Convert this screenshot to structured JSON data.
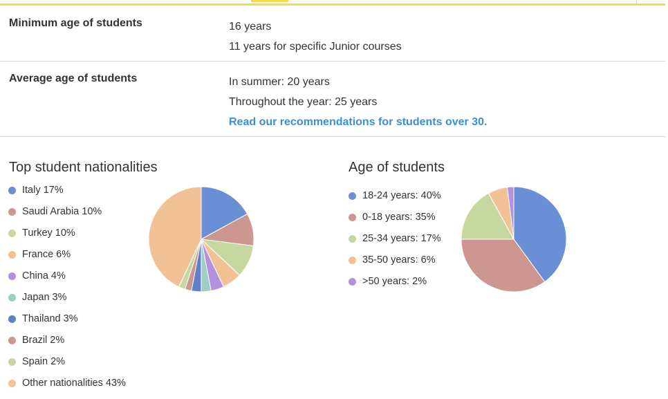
{
  "rows": {
    "min_age": {
      "label": "Minimum age of students",
      "lines": [
        "16 years",
        "11 years for specific Junior courses"
      ]
    },
    "avg_age": {
      "label": "Average age of students",
      "lines": [
        "In summer: 20 years",
        "Throughout the year: 25 years"
      ],
      "link": "Read our recommendations for students over 30."
    }
  },
  "nationalities": {
    "title": "Top student nationalities",
    "items": [
      {
        "label": "Italy 17%",
        "color": "#6a8fd4"
      },
      {
        "label": "Saudi Arabia 10%",
        "color": "#cd9791"
      },
      {
        "label": "Turkey 10%",
        "color": "#c6d79f"
      },
      {
        "label": "France 6%",
        "color": "#f1c296"
      },
      {
        "label": "China 4%",
        "color": "#b491dd"
      },
      {
        "label": "Japan 3%",
        "color": "#9dcdc5"
      },
      {
        "label": "Thailand 3%",
        "color": "#5f7fc8"
      },
      {
        "label": "Brazil 2%",
        "color": "#cd9791"
      },
      {
        "label": "Spain 2%",
        "color": "#c6d79f"
      },
      {
        "label": "Other nationalities 43%",
        "color": "#f1c296"
      }
    ]
  },
  "ages": {
    "title": "Age of students",
    "items": [
      {
        "label": "18-24 years: 40%",
        "color": "#6a8fd4"
      },
      {
        "label": "0-18 years: 35%",
        "color": "#cd9791"
      },
      {
        "label": "25-34 years: 17%",
        "color": "#c6d79f"
      },
      {
        "label": "35-50 years: 6%",
        "color": "#f1c296"
      },
      {
        "label": ">50 years: 2%",
        "color": "#b491dd"
      }
    ]
  },
  "chart_data": [
    {
      "type": "pie",
      "title": "Top student nationalities",
      "categories": [
        "Italy",
        "Saudi Arabia",
        "Turkey",
        "France",
        "China",
        "Japan",
        "Thailand",
        "Brazil",
        "Spain",
        "Other nationalities"
      ],
      "values": [
        17,
        10,
        10,
        6,
        4,
        3,
        3,
        2,
        2,
        43
      ],
      "colors": [
        "#6a8fd4",
        "#cd9791",
        "#c6d79f",
        "#f1c296",
        "#b491dd",
        "#9dcdc5",
        "#5f7fc8",
        "#cd9791",
        "#c6d79f",
        "#f1c296"
      ],
      "legend": "left"
    },
    {
      "type": "pie",
      "title": "Age of students",
      "categories": [
        "18-24 years",
        "0-18 years",
        "25-34 years",
        "35-50 years",
        ">50 years"
      ],
      "values": [
        40,
        35,
        17,
        6,
        2
      ],
      "colors": [
        "#6a8fd4",
        "#cd9791",
        "#c6d79f",
        "#f1c296",
        "#b491dd"
      ],
      "legend": "left"
    }
  ]
}
